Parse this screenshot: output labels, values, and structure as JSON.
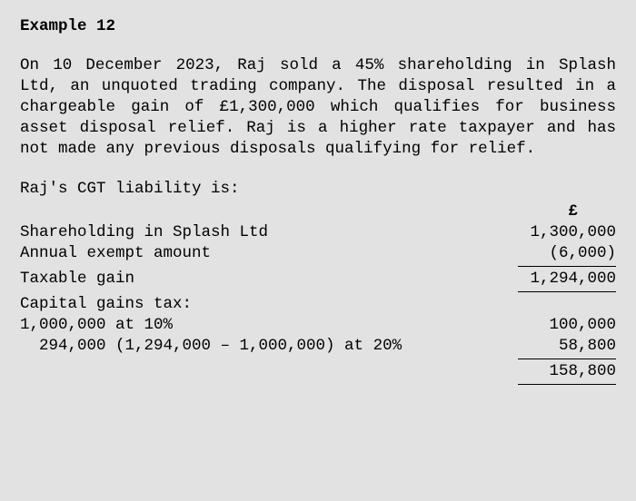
{
  "title": "Example 12",
  "paragraph": "On 10 December 2023, Raj sold a 45% shareholding in Splash Ltd, an unquoted trading company. The disposal resulted in a chargeable gain of £1,300,000 which qualifies for business asset disposal relief. Raj is a higher rate taxpayer and has not made any previous disposals qualifying for relief.",
  "lead": "Raj's CGT liability is:",
  "currency": "£",
  "rows": {
    "shareholding": {
      "label": "Shareholding in Splash Ltd",
      "value": "1,300,000"
    },
    "exempt": {
      "label": "Annual exempt amount",
      "value": "(6,000)"
    },
    "taxable": {
      "label": "Taxable gain",
      "value": "1,294,000"
    },
    "cgt_header": {
      "label": "Capital gains tax:"
    },
    "band1": {
      "label": "1,000,000 at 10%",
      "value": "100,000"
    },
    "band2": {
      "label": "  294,000 (1,294,000 – 1,000,000) at 20%",
      "value": "58,800"
    },
    "total": {
      "value": "158,800"
    }
  },
  "style": {
    "background_color": "#e2e2e2",
    "font_family": "Courier New",
    "font_size": 17.5,
    "rule_width": 108,
    "value_col_width": 140
  }
}
